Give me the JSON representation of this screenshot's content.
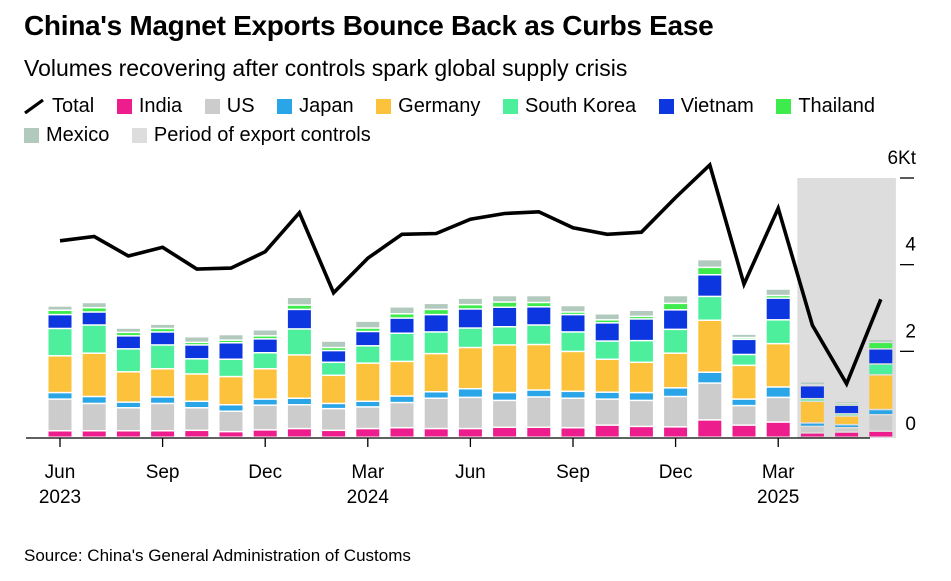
{
  "title": "China's Magnet Exports Bounce Back as Curbs Ease",
  "subtitle": "Volumes recovering after controls spark global supply crisis",
  "source": "Source: China's General Administration of Customs",
  "legend": {
    "total": "Total",
    "india": "India",
    "us": "US",
    "japan": "Japan",
    "germany": "Germany",
    "south_korea": "South Korea",
    "vietnam": "Vietnam",
    "thailand": "Thailand",
    "mexico": "Mexico",
    "period": "Period of export controls"
  },
  "chart_data": {
    "type": "bar",
    "stacked": true,
    "unit": "Kt",
    "ylim": [
      0,
      6
    ],
    "y_ticks": [
      {
        "value": 6,
        "label": "6Kt"
      },
      {
        "value": 4,
        "label": "4"
      },
      {
        "value": 2,
        "label": "2"
      },
      {
        "value": 0,
        "label": "0"
      }
    ],
    "x_ticks": [
      {
        "index": 0,
        "label": "Jun",
        "year": "2023"
      },
      {
        "index": 3,
        "label": "Sep",
        "year": ""
      },
      {
        "index": 6,
        "label": "Dec",
        "year": ""
      },
      {
        "index": 9,
        "label": "Mar",
        "year": "2024"
      },
      {
        "index": 12,
        "label": "Jun",
        "year": ""
      },
      {
        "index": 15,
        "label": "Sep",
        "year": ""
      },
      {
        "index": 18,
        "label": "Dec",
        "year": ""
      },
      {
        "index": 21,
        "label": "Mar",
        "year": "2025"
      }
    ],
    "categories": [
      "2023-06",
      "2023-07",
      "2023-08",
      "2023-09",
      "2023-10",
      "2023-11",
      "2023-12",
      "2024-01",
      "2024-02",
      "2024-03",
      "2024-04",
      "2024-05",
      "2024-06",
      "2024-07",
      "2024-08",
      "2024-09",
      "2024-10",
      "2024-11",
      "2024-12",
      "2025-01",
      "2025-02",
      "2025-03",
      "2025-04",
      "2025-05",
      "2025-06"
    ],
    "shaded_period": {
      "start": "2025-04",
      "end": "2025-06",
      "label": "Period of export controls"
    },
    "colors": {
      "India": "#ee1d8e",
      "US": "#cccccc",
      "Japan": "#2aa6e8",
      "Germany": "#fcc23c",
      "South Korea": "#4def9d",
      "Vietnam": "#0c36e0",
      "Thailand": "#3eeb4d",
      "Mexico": "#b2c9bd",
      "Total": "#000000",
      "Period": "#dddddd"
    },
    "series": [
      {
        "name": "India",
        "values": [
          0.15,
          0.15,
          0.15,
          0.15,
          0.16,
          0.13,
          0.17,
          0.2,
          0.16,
          0.2,
          0.22,
          0.2,
          0.2,
          0.23,
          0.23,
          0.22,
          0.28,
          0.25,
          0.24,
          0.4,
          0.28,
          0.35,
          0.1,
          0.12,
          0.14
        ]
      },
      {
        "name": "US",
        "values": [
          0.73,
          0.63,
          0.53,
          0.63,
          0.52,
          0.47,
          0.57,
          0.55,
          0.5,
          0.5,
          0.58,
          0.7,
          0.72,
          0.62,
          0.7,
          0.68,
          0.6,
          0.6,
          0.7,
          0.85,
          0.45,
          0.57,
          0.15,
          0.1,
          0.38
        ]
      },
      {
        "name": "Japan",
        "values": [
          0.15,
          0.16,
          0.13,
          0.15,
          0.15,
          0.15,
          0.14,
          0.15,
          0.12,
          0.13,
          0.15,
          0.15,
          0.2,
          0.18,
          0.16,
          0.16,
          0.16,
          0.18,
          0.2,
          0.25,
          0.15,
          0.24,
          0.08,
          0.07,
          0.12
        ]
      },
      {
        "name": "Germany",
        "values": [
          0.85,
          1.0,
          0.7,
          0.65,
          0.63,
          0.65,
          0.7,
          1.0,
          0.65,
          0.88,
          0.8,
          0.88,
          0.95,
          1.1,
          1.05,
          0.92,
          0.76,
          0.7,
          0.8,
          1.2,
          0.78,
          1.0,
          0.5,
          0.2,
          0.8
        ]
      },
      {
        "name": "South Korea",
        "values": [
          0.63,
          0.65,
          0.53,
          0.55,
          0.35,
          0.4,
          0.37,
          0.6,
          0.3,
          0.4,
          0.65,
          0.5,
          0.45,
          0.42,
          0.45,
          0.45,
          0.42,
          0.5,
          0.55,
          0.55,
          0.25,
          0.55,
          0.06,
          0.05,
          0.25
        ]
      },
      {
        "name": "Vietnam",
        "values": [
          0.32,
          0.3,
          0.3,
          0.3,
          0.32,
          0.38,
          0.32,
          0.45,
          0.27,
          0.33,
          0.35,
          0.4,
          0.44,
          0.45,
          0.42,
          0.4,
          0.42,
          0.5,
          0.45,
          0.5,
          0.35,
          0.5,
          0.3,
          0.2,
          0.35
        ]
      },
      {
        "name": "Thailand",
        "values": [
          0.1,
          0.1,
          0.08,
          0.08,
          0.06,
          0.06,
          0.07,
          0.1,
          0.07,
          0.08,
          0.1,
          0.12,
          0.1,
          0.12,
          0.1,
          0.06,
          0.07,
          0.06,
          0.15,
          0.17,
          0.04,
          0.06,
          0.02,
          0.04,
          0.15
        ]
      },
      {
        "name": "Mexico",
        "values": [
          0.1,
          0.12,
          0.1,
          0.1,
          0.13,
          0.13,
          0.14,
          0.18,
          0.15,
          0.16,
          0.16,
          0.14,
          0.15,
          0.15,
          0.16,
          0.15,
          0.14,
          0.14,
          0.18,
          0.18,
          0.08,
          0.15,
          0.07,
          0.05,
          0.07
        ]
      }
    ],
    "total": [
      4.55,
      4.65,
      4.2,
      4.4,
      3.9,
      3.92,
      4.3,
      5.2,
      3.35,
      4.15,
      4.7,
      4.72,
      5.05,
      5.18,
      5.22,
      4.85,
      4.7,
      4.75,
      5.55,
      6.3,
      3.55,
      5.3,
      2.6,
      1.25,
      3.2
    ]
  }
}
